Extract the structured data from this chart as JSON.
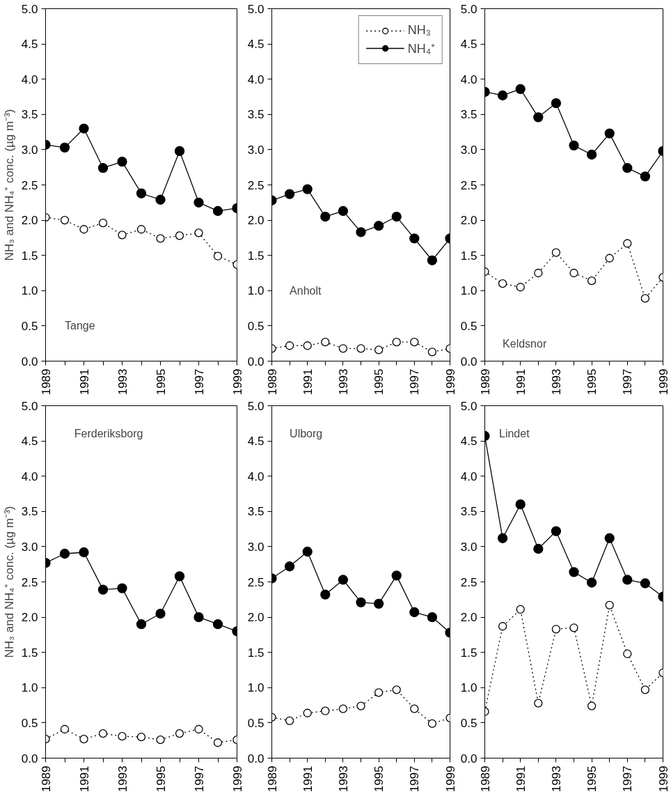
{
  "chart_data": [
    {
      "type": "line",
      "ylabel": "NH₃ and NH₄⁺ conc. (µg m⁻³)",
      "annotations": [
        "Tange"
      ],
      "x": [
        1989,
        1990,
        1991,
        1992,
        1993,
        1994,
        1995,
        1996,
        1997,
        1998,
        1999
      ],
      "xlim": [
        1989,
        1999
      ],
      "xticks": [
        1989,
        {
          "value": 1990,
          "label": null
        },
        1991,
        {
          "value": 1992,
          "label": null
        },
        1993,
        {
          "value": 1994,
          "label": null
        },
        1995,
        {
          "value": 1996,
          "label": null
        },
        1997,
        {
          "value": 1998,
          "label": null
        },
        1999
      ],
      "ylim": [
        0,
        5
      ],
      "yticks": [
        {
          "value": 0,
          "label": "0.0"
        },
        {
          "value": 0.5,
          "label": "0.5"
        },
        {
          "value": 1,
          "label": "1.0"
        },
        {
          "value": 1.5,
          "label": "1.5"
        },
        {
          "value": 2,
          "label": "2.0"
        },
        {
          "value": 2.5,
          "label": "2.5"
        },
        {
          "value": 3,
          "label": "3.0"
        },
        {
          "value": 3.5,
          "label": "3.5"
        },
        {
          "value": 4,
          "label": "4.0"
        },
        {
          "value": 4.5,
          "label": "4.5"
        },
        {
          "value": 5,
          "label": "5.0"
        }
      ],
      "grid": false,
      "legend": false,
      "marker": "circle",
      "series": [
        {
          "color": "#000000",
          "line_style": "dotted",
          "values": [
            2.04,
            2.0,
            1.87,
            1.96,
            1.79,
            1.87,
            1.74,
            1.78,
            1.82,
            1.49,
            1.37
          ]
        },
        {
          "color": "#000000",
          "line_style": "solid",
          "values": [
            3.07,
            3.03,
            3.3,
            2.74,
            2.83,
            2.38,
            2.29,
            2.98,
            2.25,
            2.13,
            2.17
          ]
        }
      ]
    },
    {
      "type": "line",
      "annotations": [
        "Anholt"
      ],
      "x": [
        1989,
        1990,
        1991,
        1992,
        1993,
        1994,
        1995,
        1996,
        1997,
        1998,
        1999
      ],
      "xlim": [
        1989,
        1999
      ],
      "xticks": [
        1989,
        {
          "value": 1990,
          "label": null
        },
        1991,
        {
          "value": 1992,
          "label": null
        },
        1993,
        {
          "value": 1994,
          "label": null
        },
        1995,
        {
          "value": 1996,
          "label": null
        },
        1997,
        {
          "value": 1998,
          "label": null
        },
        1999
      ],
      "ylim": [
        0,
        5
      ],
      "yticks": [
        {
          "value": 0,
          "label": "0.0"
        },
        {
          "value": 0.5,
          "label": "0.5"
        },
        {
          "value": 1,
          "label": "1.0"
        },
        {
          "value": 1.5,
          "label": "1.5"
        },
        {
          "value": 2,
          "label": "2.0"
        },
        {
          "value": 2.5,
          "label": "2.5"
        },
        {
          "value": 3,
          "label": "3.0"
        },
        {
          "value": 3.5,
          "label": "3.5"
        },
        {
          "value": 4,
          "label": "4.0"
        },
        {
          "value": 4.5,
          "label": "4.5"
        },
        {
          "value": 5,
          "label": "5.0"
        }
      ],
      "grid": false,
      "legend": "top right",
      "marker": "circle",
      "series": [
        {
          "name": "NH₃",
          "color": "#000000",
          "line_style": "dotted",
          "values": [
            0.18,
            0.22,
            0.22,
            0.27,
            0.18,
            0.18,
            0.16,
            0.27,
            0.27,
            0.13,
            0.18
          ]
        },
        {
          "name": "NH₄⁺",
          "color": "#000000",
          "line_style": "solid",
          "values": [
            2.28,
            2.37,
            2.44,
            2.05,
            2.13,
            1.83,
            1.92,
            2.05,
            1.74,
            1.43,
            1.74
          ]
        }
      ]
    },
    {
      "type": "line",
      "annotations": [
        "Keldsnor"
      ],
      "x": [
        1989,
        1990,
        1991,
        1992,
        1993,
        1994,
        1995,
        1996,
        1997,
        1998,
        1999
      ],
      "xlim": [
        1989,
        1999
      ],
      "xticks": [
        1989,
        {
          "value": 1990,
          "label": null
        },
        1991,
        {
          "value": 1992,
          "label": null
        },
        1993,
        {
          "value": 1994,
          "label": null
        },
        1995,
        {
          "value": 1996,
          "label": null
        },
        1997,
        {
          "value": 1998,
          "label": null
        },
        1999
      ],
      "ylim": [
        0,
        5
      ],
      "yticks": [
        {
          "value": 0,
          "label": "0.0"
        },
        {
          "value": 0.5,
          "label": "0.5"
        },
        {
          "value": 1,
          "label": "1.0"
        },
        {
          "value": 1.5,
          "label": "1.5"
        },
        {
          "value": 2,
          "label": "2.0"
        },
        {
          "value": 2.5,
          "label": "2.5"
        },
        {
          "value": 3,
          "label": "3.0"
        },
        {
          "value": 3.5,
          "label": "3.5"
        },
        {
          "value": 4,
          "label": "4.0"
        },
        {
          "value": 4.5,
          "label": "4.5"
        },
        {
          "value": 5,
          "label": "5.0"
        }
      ],
      "grid": false,
      "legend": false,
      "marker": "circle",
      "series": [
        {
          "color": "#000000",
          "line_style": "dotted",
          "values": [
            1.27,
            1.1,
            1.05,
            1.25,
            1.54,
            1.25,
            1.14,
            1.46,
            1.67,
            0.89,
            1.19
          ]
        },
        {
          "color": "#000000",
          "line_style": "solid",
          "values": [
            3.82,
            3.77,
            3.86,
            3.46,
            3.66,
            3.06,
            2.93,
            3.23,
            2.74,
            2.62,
            2.98
          ]
        }
      ]
    },
    {
      "type": "line",
      "ylabel": "NH₃ and NH₄⁺ conc. (µg m⁻³)",
      "annotations": [
        "Ferderiksborg"
      ],
      "x": [
        1989,
        1990,
        1991,
        1992,
        1993,
        1994,
        1995,
        1996,
        1997,
        1998,
        1999
      ],
      "xlim": [
        1989,
        1999
      ],
      "xticks": [
        1989,
        {
          "value": 1990,
          "label": null
        },
        1991,
        {
          "value": 1992,
          "label": null
        },
        1993,
        {
          "value": 1994,
          "label": null
        },
        1995,
        {
          "value": 1996,
          "label": null
        },
        1997,
        {
          "value": 1998,
          "label": null
        },
        1999
      ],
      "ylim": [
        0,
        5
      ],
      "yticks": [
        {
          "value": 0,
          "label": "0.0"
        },
        {
          "value": 0.5,
          "label": "0.5"
        },
        {
          "value": 1,
          "label": "1.0"
        },
        {
          "value": 1.5,
          "label": "1.5"
        },
        {
          "value": 2,
          "label": "2.0"
        },
        {
          "value": 2.5,
          "label": "2.5"
        },
        {
          "value": 3,
          "label": "3.0"
        },
        {
          "value": 3.5,
          "label": "3.5"
        },
        {
          "value": 4,
          "label": "4.0"
        },
        {
          "value": 4.5,
          "label": "4.5"
        },
        {
          "value": 5,
          "label": "5.0"
        }
      ],
      "grid": false,
      "legend": false,
      "marker": "circle",
      "series": [
        {
          "color": "#000000",
          "line_style": "dotted",
          "values": [
            0.27,
            0.41,
            0.27,
            0.35,
            0.31,
            0.3,
            0.26,
            0.35,
            0.41,
            0.22,
            0.26
          ]
        },
        {
          "color": "#000000",
          "line_style": "solid",
          "values": [
            2.77,
            2.9,
            2.92,
            2.39,
            2.41,
            1.9,
            2.05,
            2.58,
            2.0,
            1.9,
            1.8
          ]
        }
      ]
    },
    {
      "type": "line",
      "annotations": [
        "Ulborg"
      ],
      "x": [
        1989,
        1990,
        1991,
        1992,
        1993,
        1994,
        1995,
        1996,
        1997,
        1998,
        1999
      ],
      "xlim": [
        1989,
        1999
      ],
      "xticks": [
        1989,
        {
          "value": 1990,
          "label": null
        },
        1991,
        {
          "value": 1992,
          "label": null
        },
        1993,
        {
          "value": 1994,
          "label": null
        },
        1995,
        {
          "value": 1996,
          "label": null
        },
        1997,
        {
          "value": 1998,
          "label": null
        },
        1999
      ],
      "ylim": [
        0,
        5
      ],
      "yticks": [
        {
          "value": 0,
          "label": "0.0"
        },
        {
          "value": 0.5,
          "label": "0.5"
        },
        {
          "value": 1,
          "label": "1.0"
        },
        {
          "value": 1.5,
          "label": "1.5"
        },
        {
          "value": 2,
          "label": "2.0"
        },
        {
          "value": 2.5,
          "label": "2.5"
        },
        {
          "value": 3,
          "label": "3.0"
        },
        {
          "value": 3.5,
          "label": "3.5"
        },
        {
          "value": 4,
          "label": "4.0"
        },
        {
          "value": 4.5,
          "label": "4.5"
        },
        {
          "value": 5,
          "label": "5.0"
        }
      ],
      "grid": false,
      "legend": false,
      "marker": "circle",
      "series": [
        {
          "color": "#000000",
          "line_style": "dotted",
          "values": [
            0.58,
            0.53,
            0.64,
            0.67,
            0.7,
            0.74,
            0.93,
            0.97,
            0.7,
            0.49,
            0.57
          ]
        },
        {
          "color": "#000000",
          "line_style": "solid",
          "values": [
            2.55,
            2.72,
            2.93,
            2.32,
            2.53,
            2.21,
            2.19,
            2.59,
            2.07,
            2.0,
            1.78
          ]
        }
      ]
    },
    {
      "type": "line",
      "annotations": [
        "Lindet"
      ],
      "x": [
        1989,
        1990,
        1991,
        1992,
        1993,
        1994,
        1995,
        1996,
        1997,
        1998,
        1999
      ],
      "xlim": [
        1989,
        1999
      ],
      "xticks": [
        1989,
        {
          "value": 1990,
          "label": null
        },
        1991,
        {
          "value": 1992,
          "label": null
        },
        1993,
        {
          "value": 1994,
          "label": null
        },
        1995,
        {
          "value": 1996,
          "label": null
        },
        1997,
        {
          "value": 1998,
          "label": null
        },
        1999
      ],
      "ylim": [
        0,
        5
      ],
      "yticks": [
        {
          "value": 0,
          "label": "0.0"
        },
        {
          "value": 0.5,
          "label": "0.5"
        },
        {
          "value": 1,
          "label": "1.0"
        },
        {
          "value": 1.5,
          "label": "1.5"
        },
        {
          "value": 2,
          "label": "2.0"
        },
        {
          "value": 2.5,
          "label": "2.5"
        },
        {
          "value": 3,
          "label": "3.0"
        },
        {
          "value": 3.5,
          "label": "3.5"
        },
        {
          "value": 4,
          "label": "4.0"
        },
        {
          "value": 4.5,
          "label": "4.5"
        },
        {
          "value": 5,
          "label": "5.0"
        }
      ],
      "grid": false,
      "legend": false,
      "marker": "circle",
      "series": [
        {
          "color": "#000000",
          "line_style": "dotted",
          "values": [
            0.66,
            1.87,
            2.11,
            0.78,
            1.83,
            1.85,
            0.74,
            2.17,
            1.48,
            0.97,
            1.21
          ]
        },
        {
          "color": "#000000",
          "line_style": "solid",
          "values": [
            4.57,
            3.12,
            3.6,
            2.97,
            3.22,
            2.64,
            2.49,
            3.12,
            2.53,
            2.48,
            2.29
          ]
        }
      ]
    }
  ]
}
